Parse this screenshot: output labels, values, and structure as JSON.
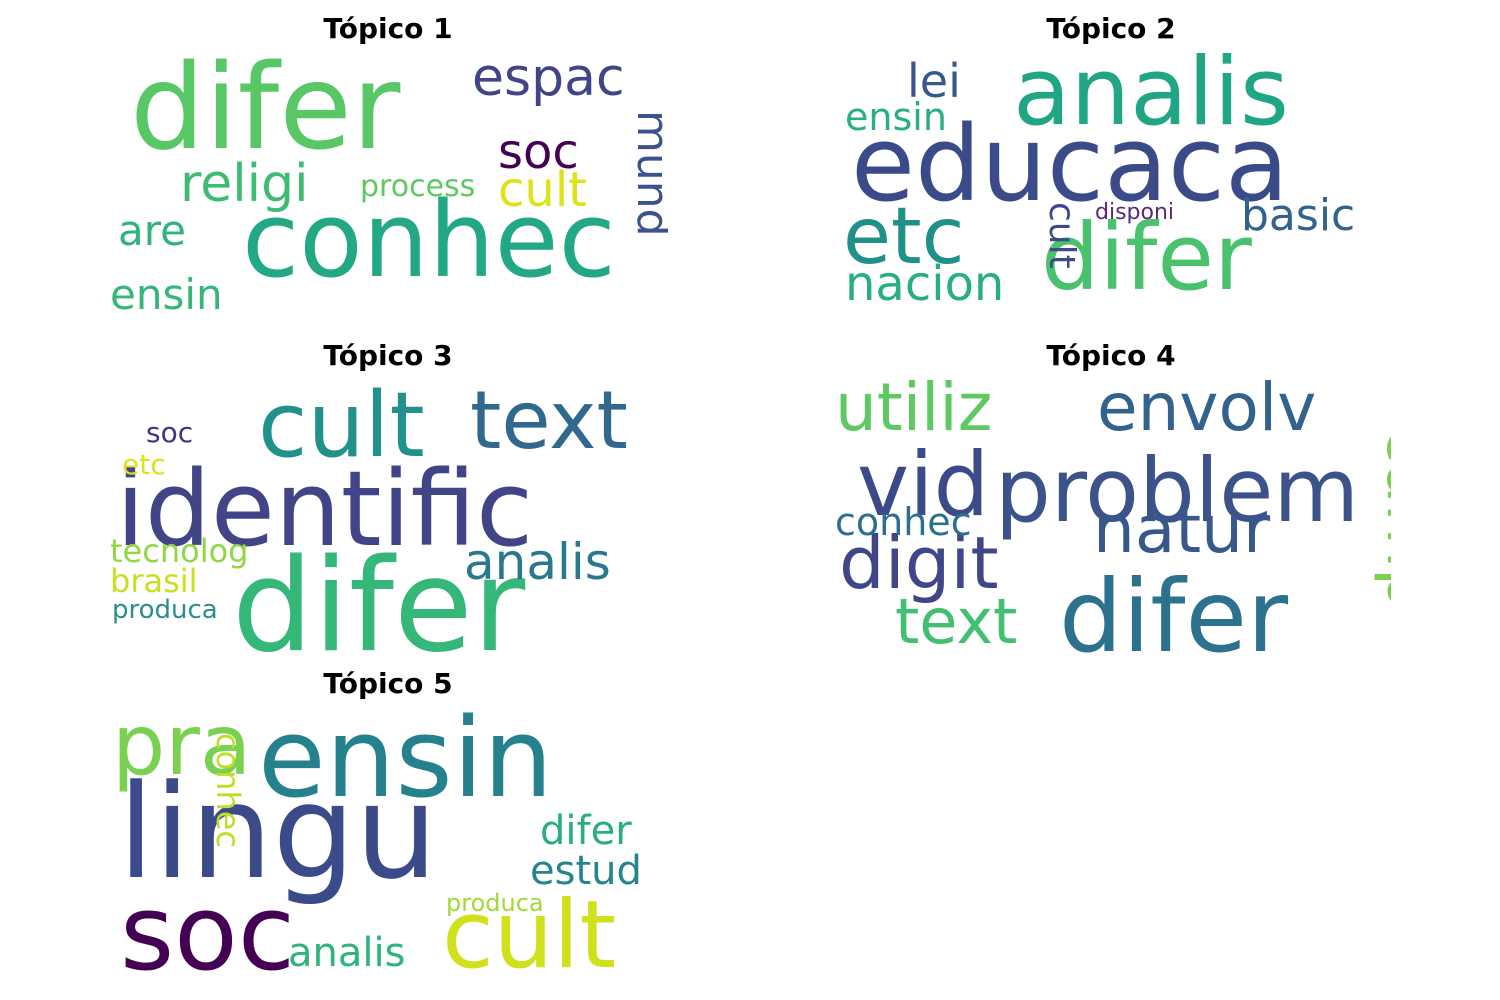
{
  "chart_data": [
    {
      "type": "wordcloud",
      "title": "Tópico 1",
      "words": [
        {
          "text": "difer",
          "weight": 1.0,
          "color": "#58c765"
        },
        {
          "text": "conhec",
          "weight": 0.82,
          "color": "#22a884"
        },
        {
          "text": "espac",
          "weight": 0.42,
          "color": "#414487"
        },
        {
          "text": "religi",
          "weight": 0.4,
          "color": "#3fbc73"
        },
        {
          "text": "soc",
          "weight": 0.38,
          "color": "#440154"
        },
        {
          "text": "cult",
          "weight": 0.38,
          "color": "#dde318"
        },
        {
          "text": "mund",
          "weight": 0.37,
          "color": "#3b528b"
        },
        {
          "text": "process",
          "weight": 0.25,
          "color": "#5ec962"
        },
        {
          "text": "are",
          "weight": 0.3,
          "color": "#2fb47c"
        },
        {
          "text": "ensin",
          "weight": 0.35,
          "color": "#35b779"
        }
      ]
    },
    {
      "type": "wordcloud",
      "title": "Tópico 2",
      "words": [
        {
          "text": "educaca",
          "weight": 1.0,
          "color": "#3b4b8a"
        },
        {
          "text": "analis",
          "weight": 0.85,
          "color": "#21a685"
        },
        {
          "text": "difer",
          "weight": 0.8,
          "color": "#4ac16d"
        },
        {
          "text": "etc",
          "weight": 0.6,
          "color": "#1f9188"
        },
        {
          "text": "lei",
          "weight": 0.4,
          "color": "#38588c"
        },
        {
          "text": "ensin",
          "weight": 0.32,
          "color": "#2ab07f"
        },
        {
          "text": "basic",
          "weight": 0.37,
          "color": "#33638d"
        },
        {
          "text": "nacion",
          "weight": 0.39,
          "color": "#29af7f"
        },
        {
          "text": "cult",
          "weight": 0.3,
          "color": "#3e4989"
        },
        {
          "text": "disponi",
          "weight": 0.2,
          "color": "#5b2a72"
        }
      ]
    },
    {
      "type": "wordcloud",
      "title": "Tópico 3",
      "words": [
        {
          "text": "identific",
          "weight": 1.0,
          "color": "#414487"
        },
        {
          "text": "difer",
          "weight": 1.0,
          "color": "#35b779"
        },
        {
          "text": "cult",
          "weight": 0.78,
          "color": "#21918c"
        },
        {
          "text": "text",
          "weight": 0.74,
          "color": "#31688e"
        },
        {
          "text": "analis",
          "weight": 0.48,
          "color": "#2a788e"
        },
        {
          "text": "soc",
          "weight": 0.26,
          "color": "#46327e"
        },
        {
          "text": "etc",
          "weight": 0.26,
          "color": "#dce319"
        },
        {
          "text": "tecnolog",
          "weight": 0.3,
          "color": "#8fd744"
        },
        {
          "text": "brasil",
          "weight": 0.3,
          "color": "#c8e020"
        },
        {
          "text": "produca",
          "weight": 0.24,
          "color": "#2c8e8c"
        }
      ]
    },
    {
      "type": "wordcloud",
      "title": "Tópico 4",
      "words": [
        {
          "text": "problem",
          "weight": 1.0,
          "color": "#3b528b"
        },
        {
          "text": "difer",
          "weight": 1.0,
          "color": "#2c728e"
        },
        {
          "text": "vid",
          "weight": 0.82,
          "color": "#3b4b8a"
        },
        {
          "text": "utiliz",
          "weight": 0.72,
          "color": "#5ec962"
        },
        {
          "text": "envolv",
          "weight": 0.72,
          "color": "#33638d"
        },
        {
          "text": "natur",
          "weight": 0.78,
          "color": "#38588c"
        },
        {
          "text": "digit",
          "weight": 0.8,
          "color": "#404688"
        },
        {
          "text": "text",
          "weight": 0.68,
          "color": "#43bf71"
        },
        {
          "text": "conhec",
          "weight": 0.42,
          "color": "#2d708e"
        },
        {
          "text": "camp",
          "weight": 0.78,
          "color": "#7ad151"
        }
      ]
    },
    {
      "type": "wordcloud",
      "title": "Tópico 5",
      "words": [
        {
          "text": "lingu",
          "weight": 1.0,
          "color": "#3b4b8a"
        },
        {
          "text": "ensin",
          "weight": 0.95,
          "color": "#26818e"
        },
        {
          "text": "soc",
          "weight": 0.84,
          "color": "#440154"
        },
        {
          "text": "cult",
          "weight": 0.82,
          "color": "#d0e11c"
        },
        {
          "text": "pra",
          "weight": 0.74,
          "color": "#7ad151"
        },
        {
          "text": "difer",
          "weight": 0.4,
          "color": "#29af7f"
        },
        {
          "text": "estud",
          "weight": 0.4,
          "color": "#25858e"
        },
        {
          "text": "analis",
          "weight": 0.38,
          "color": "#2fb47c"
        },
        {
          "text": "conhec",
          "weight": 0.33,
          "color": "#bddf26"
        },
        {
          "text": "produca",
          "weight": 0.24,
          "color": "#a0da39"
        }
      ]
    }
  ]
}
